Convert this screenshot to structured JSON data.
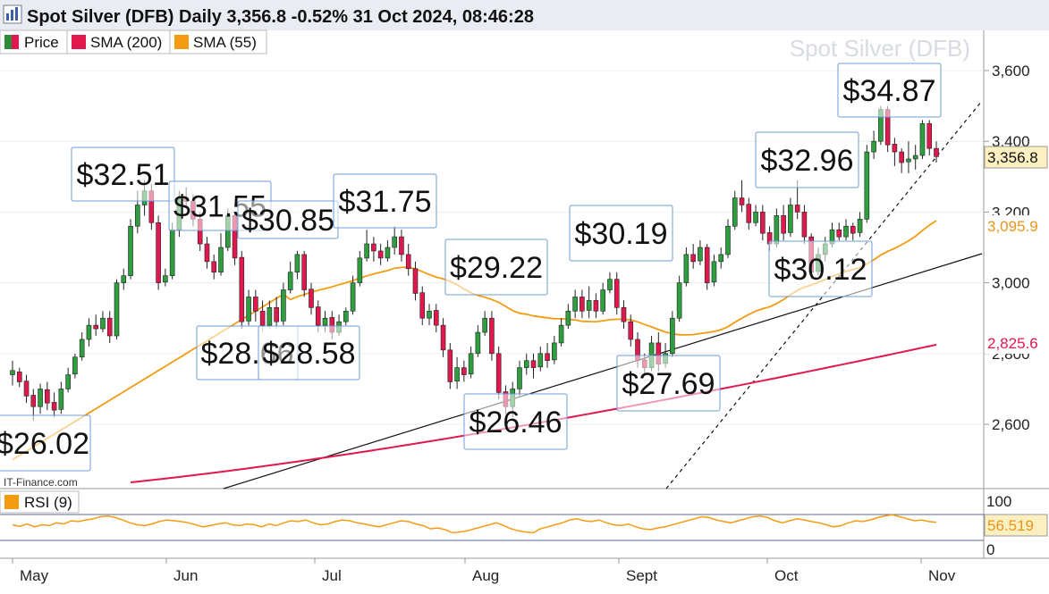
{
  "header": {
    "title": "Spot Silver (DFB) Daily 3,356.8 -0.52% 31 Oct 2024, 08:46:28",
    "watermark": "Spot Silver (DFB)",
    "source": "IT-Finance.com"
  },
  "legend": {
    "items": [
      {
        "label": "Price",
        "color": "#2e8b3a"
      },
      {
        "label": "SMA (200)",
        "color": "#e0184e"
      },
      {
        "label": "SMA (55)",
        "color": "#f39c12"
      }
    ]
  },
  "rsi": {
    "label": "RSI (9)",
    "color": "#f39c12",
    "ticks": [
      "100",
      "0"
    ],
    "current_label": "56.519",
    "levels": [
      70,
      30
    ],
    "values": [
      50,
      46,
      52,
      45,
      50,
      48,
      55,
      52,
      60,
      58,
      62,
      65,
      70,
      72,
      68,
      62,
      55,
      50,
      48,
      52,
      58,
      62,
      60,
      58,
      55,
      50,
      45,
      48,
      52,
      55,
      50,
      48,
      52,
      50,
      45,
      52,
      48,
      55,
      60,
      58,
      62,
      55,
      50,
      52,
      58,
      62,
      60,
      55,
      52,
      48,
      45,
      50,
      55,
      60,
      58,
      52,
      48,
      40,
      42,
      38,
      30,
      32,
      35,
      40,
      45,
      50,
      55,
      48,
      40,
      35,
      32,
      30,
      40,
      45,
      50,
      55,
      62,
      65,
      60,
      58,
      62,
      55,
      50,
      48,
      52,
      45,
      40,
      38,
      42,
      45,
      50,
      55,
      60,
      65,
      70,
      68,
      62,
      58,
      55,
      60,
      65,
      70,
      72,
      68,
      60,
      55,
      60,
      65,
      62,
      58,
      55,
      50,
      45,
      48,
      55,
      60,
      58,
      62,
      68,
      72,
      75,
      70,
      65,
      60,
      62,
      58,
      56
    ]
  },
  "chart_data": {
    "type": "candlestick",
    "title": "Spot Silver (DFB) Daily",
    "y_ticks": [
      "3,600",
      "3,400",
      "3,200",
      "3,000",
      "2,800",
      "2,600"
    ],
    "ylim": [
      2400,
      3720
    ],
    "x_labels": [
      "May",
      "Jun",
      "Jul",
      "Aug",
      "Sept",
      "Oct",
      "Nov"
    ],
    "price_label": "3,356.8",
    "sma55_label": "3,095.9",
    "sma200_label": "2,825.6",
    "candles": [
      [
        2740,
        2752,
        2710,
        2780
      ],
      [
        2748,
        2720,
        2705,
        2760
      ],
      [
        2722,
        2680,
        2660,
        2740
      ],
      [
        2682,
        2650,
        2610,
        2700
      ],
      [
        2650,
        2700,
        2630,
        2715
      ],
      [
        2698,
        2660,
        2640,
        2720
      ],
      [
        2662,
        2640,
        2620,
        2690
      ],
      [
        2642,
        2700,
        2630,
        2720
      ],
      [
        2700,
        2740,
        2690,
        2760
      ],
      [
        2742,
        2790,
        2730,
        2800
      ],
      [
        2790,
        2840,
        2780,
        2860
      ],
      [
        2840,
        2880,
        2820,
        2900
      ],
      [
        2880,
        2870,
        2850,
        2910
      ],
      [
        2870,
        2900,
        2860,
        2920
      ],
      [
        2900,
        2850,
        2830,
        2920
      ],
      [
        2850,
        3000,
        2840,
        3010
      ],
      [
        3000,
        3020,
        2980,
        3040
      ],
      [
        3020,
        3160,
        3010,
        3180
      ],
      [
        3160,
        3220,
        3140,
        3260
      ],
      [
        3220,
        3260,
        3190,
        3290
      ],
      [
        3260,
        3170,
        3150,
        3280
      ],
      [
        3170,
        3000,
        2980,
        3190
      ],
      [
        3002,
        3020,
        2990,
        3040
      ],
      [
        3020,
        3150,
        3010,
        3170
      ],
      [
        3150,
        3240,
        3130,
        3260
      ],
      [
        3240,
        3230,
        3210,
        3270
      ],
      [
        3230,
        3180,
        3160,
        3250
      ],
      [
        3180,
        3110,
        3090,
        3200
      ],
      [
        3110,
        3060,
        3040,
        3130
      ],
      [
        3060,
        3030,
        3010,
        3080
      ],
      [
        3030,
        3100,
        3020,
        3140
      ],
      [
        3100,
        3190,
        3090,
        3210
      ],
      [
        3190,
        3070,
        3050,
        3200
      ],
      [
        3072,
        2890,
        2870,
        3090
      ],
      [
        2892,
        2960,
        2880,
        2980
      ],
      [
        2960,
        2920,
        2890,
        2980
      ],
      [
        2920,
        2880,
        2860,
        2950
      ],
      [
        2880,
        2930,
        2870,
        2950
      ],
      [
        2930,
        2890,
        2870,
        2960
      ],
      [
        2892,
        2980,
        2880,
        3000
      ],
      [
        2980,
        3030,
        2970,
        3060
      ],
      [
        3030,
        3080,
        3010,
        3090
      ],
      [
        3080,
        2980,
        2960,
        3090
      ],
      [
        2982,
        2930,
        2910,
        3000
      ],
      [
        2932,
        2880,
        2860,
        2950
      ],
      [
        2880,
        2900,
        2860,
        2920
      ],
      [
        2902,
        2860,
        2840,
        2920
      ],
      [
        2860,
        2890,
        2850,
        2910
      ],
      [
        2890,
        2920,
        2880,
        2930
      ],
      [
        2920,
        3000,
        2910,
        3020
      ],
      [
        3000,
        3070,
        2990,
        3090
      ],
      [
        3070,
        3110,
        3060,
        3150
      ],
      [
        3110,
        3090,
        3060,
        3130
      ],
      [
        3090,
        3070,
        3050,
        3110
      ],
      [
        3070,
        3100,
        3060,
        3120
      ],
      [
        3100,
        3130,
        3080,
        3160
      ],
      [
        3130,
        3080,
        3060,
        3150
      ],
      [
        3080,
        3040,
        3020,
        3110
      ],
      [
        3040,
        2970,
        2950,
        3060
      ],
      [
        2972,
        2900,
        2880,
        2990
      ],
      [
        2900,
        2920,
        2880,
        2940
      ],
      [
        2922,
        2880,
        2860,
        2940
      ],
      [
        2880,
        2810,
        2790,
        2900
      ],
      [
        2810,
        2720,
        2700,
        2830
      ],
      [
        2722,
        2760,
        2700,
        2790
      ],
      [
        2760,
        2740,
        2720,
        2780
      ],
      [
        2742,
        2800,
        2730,
        2820
      ],
      [
        2800,
        2860,
        2790,
        2880
      ],
      [
        2860,
        2900,
        2850,
        2920
      ],
      [
        2900,
        2800,
        2780,
        2920
      ],
      [
        2800,
        2690,
        2670,
        2820
      ],
      [
        2692,
        2650,
        2630,
        2710
      ],
      [
        2650,
        2700,
        2620,
        2720
      ],
      [
        2700,
        2760,
        2680,
        2780
      ],
      [
        2760,
        2780,
        2740,
        2800
      ],
      [
        2780,
        2760,
        2730,
        2800
      ],
      [
        2762,
        2800,
        2750,
        2820
      ],
      [
        2800,
        2780,
        2760,
        2830
      ],
      [
        2782,
        2830,
        2770,
        2850
      ],
      [
        2830,
        2880,
        2820,
        2900
      ],
      [
        2880,
        2920,
        2870,
        2940
      ],
      [
        2920,
        2960,
        2900,
        2980
      ],
      [
        2960,
        2920,
        2900,
        2980
      ],
      [
        2922,
        2950,
        2900,
        2990
      ],
      [
        2950,
        2920,
        2900,
        2970
      ],
      [
        2920,
        2980,
        2910,
        3000
      ],
      [
        2980,
        3010,
        2970,
        3030
      ],
      [
        3010,
        2930,
        2910,
        3030
      ],
      [
        2930,
        2890,
        2870,
        2950
      ],
      [
        2890,
        2840,
        2820,
        2910
      ],
      [
        2840,
        2780,
        2760,
        2860
      ],
      [
        2782,
        2760,
        2740,
        2800
      ],
      [
        2760,
        2830,
        2750,
        2850
      ],
      [
        2830,
        2770,
        2750,
        2860
      ],
      [
        2772,
        2800,
        2760,
        2830
      ],
      [
        2800,
        2900,
        2790,
        2920
      ],
      [
        2900,
        3000,
        2890,
        3020
      ],
      [
        3000,
        3080,
        2990,
        3100
      ],
      [
        3080,
        3060,
        3040,
        3110
      ],
      [
        3062,
        3100,
        3050,
        3120
      ],
      [
        3100,
        3000,
        2980,
        3110
      ],
      [
        3002,
        3060,
        2990,
        3080
      ],
      [
        3060,
        3080,
        3040,
        3100
      ],
      [
        3080,
        3160,
        3070,
        3180
      ],
      [
        3160,
        3240,
        3150,
        3260
      ],
      [
        3240,
        3220,
        3200,
        3290
      ],
      [
        3222,
        3170,
        3150,
        3240
      ],
      [
        3170,
        3200,
        3160,
        3220
      ],
      [
        3200,
        3140,
        3120,
        3220
      ],
      [
        3142,
        3110,
        3090,
        3160
      ],
      [
        3110,
        3190,
        3100,
        3210
      ],
      [
        3190,
        3140,
        3120,
        3220
      ],
      [
        3142,
        3220,
        3130,
        3240
      ],
      [
        3220,
        3200,
        3180,
        3290
      ],
      [
        3200,
        3130,
        3110,
        3220
      ],
      [
        3130,
        3030,
        3010,
        3140
      ],
      [
        3032,
        3080,
        3020,
        3100
      ],
      [
        3080,
        3110,
        3060,
        3130
      ],
      [
        3110,
        3150,
        3100,
        3170
      ],
      [
        3150,
        3130,
        3120,
        3170
      ],
      [
        3130,
        3160,
        3120,
        3180
      ],
      [
        3160,
        3140,
        3120,
        3170
      ],
      [
        3142,
        3180,
        3130,
        3200
      ],
      [
        3180,
        3370,
        3170,
        3390
      ],
      [
        3370,
        3400,
        3350,
        3430
      ],
      [
        3400,
        3490,
        3390,
        3500
      ],
      [
        3490,
        3390,
        3370,
        3500
      ],
      [
        3392,
        3370,
        3330,
        3410
      ],
      [
        3370,
        3340,
        3310,
        3380
      ],
      [
        3342,
        3350,
        3310,
        3400
      ],
      [
        3350,
        3360,
        3320,
        3390
      ],
      [
        3360,
        3450,
        3350,
        3460
      ],
      [
        3450,
        3380,
        3360,
        3460
      ],
      [
        3380,
        3356.8,
        3340,
        3400
      ]
    ],
    "annotations": [
      {
        "label": "$26.02"
      },
      {
        "label": "$32.51"
      },
      {
        "label": "$31.55"
      },
      {
        "label": "$30.85"
      },
      {
        "label": "$28.66"
      },
      {
        "label": "$28.58"
      },
      {
        "label": "$31.75"
      },
      {
        "label": "$29.22"
      },
      {
        "label": "$26.46"
      },
      {
        "label": "$30.19"
      },
      {
        "label": "$27.69"
      },
      {
        "label": "$32.96"
      },
      {
        "label": "$30.12"
      },
      {
        "label": "$34.87"
      }
    ]
  }
}
